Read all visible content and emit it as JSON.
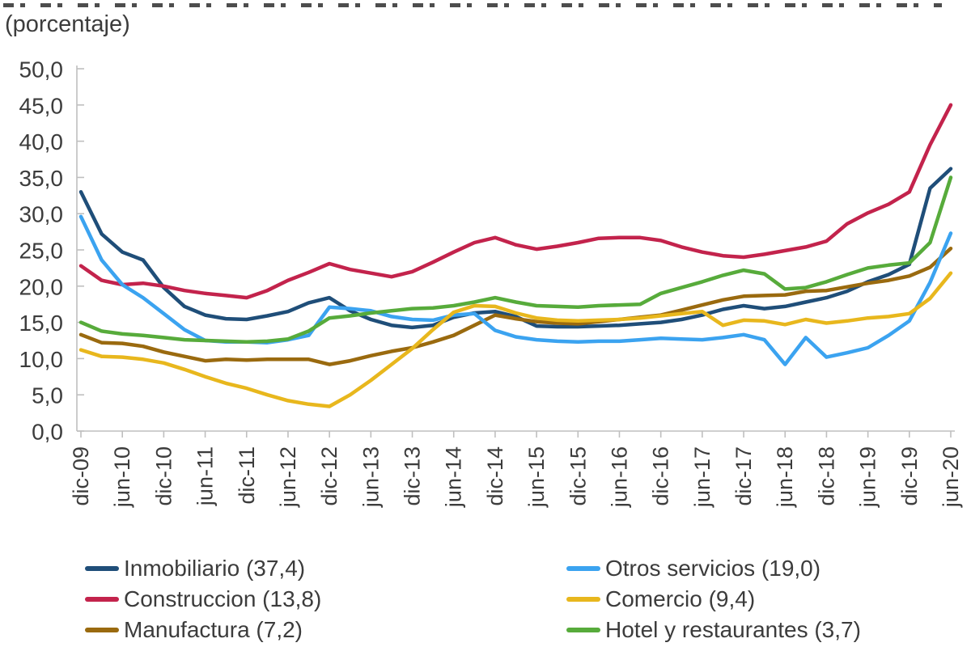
{
  "page": {
    "subtitle": "(porcentaje)",
    "text_color": "#3c3c3c",
    "axis_color": "#bfbfbf"
  },
  "chart_data": {
    "type": "line",
    "title": "(porcentaje)",
    "xlabel": "",
    "ylabel": "",
    "ylim": [
      0,
      50
    ],
    "grid": false,
    "legend_position": "bottom",
    "y_tick_labels": [
      "0,0",
      "5,0",
      "10,0",
      "15,0",
      "20,0",
      "25,0",
      "30,0",
      "35,0",
      "40,0",
      "45,0",
      "50,0"
    ],
    "y_tick_values": [
      0,
      5,
      10,
      15,
      20,
      25,
      30,
      35,
      40,
      45,
      50
    ],
    "x": [
      "dic-09",
      "mar-10",
      "jun-10",
      "sep-10",
      "dic-10",
      "mar-11",
      "jun-11",
      "sep-11",
      "dic-11",
      "mar-12",
      "jun-12",
      "sep-12",
      "dic-12",
      "mar-13",
      "jun-13",
      "sep-13",
      "dic-13",
      "mar-14",
      "jun-14",
      "sep-14",
      "dic-14",
      "mar-15",
      "jun-15",
      "sep-15",
      "dic-15",
      "mar-16",
      "jun-16",
      "sep-16",
      "dic-16",
      "mar-17",
      "jun-17",
      "sep-17",
      "dic-17",
      "mar-18",
      "jun-18",
      "sep-18",
      "dic-18",
      "mar-19",
      "jun-19",
      "sep-19",
      "dic-19",
      "mar-20",
      "jun-20"
    ],
    "x_tick_labels": [
      "dic-09",
      "jun-10",
      "dic-10",
      "jun-11",
      "dic-11",
      "jun-12",
      "dic-12",
      "jun-13",
      "dic-13",
      "jun-14",
      "dic-14",
      "jun-15",
      "dic-15",
      "jun-16",
      "dic-16",
      "jun-17",
      "dic-17",
      "jun-18",
      "dic-18",
      "jun-19",
      "dic-19",
      "jun-20"
    ],
    "series": [
      {
        "name": "Inmobiliario (37,4)",
        "color": "#1f4e79",
        "values": [
          33.0,
          27.2,
          24.7,
          23.6,
          19.8,
          17.2,
          16.0,
          15.5,
          15.4,
          15.9,
          16.5,
          17.7,
          18.4,
          16.6,
          15.4,
          14.6,
          14.3,
          14.6,
          15.7,
          16.3,
          16.5,
          15.8,
          14.5,
          14.4,
          14.4,
          14.5,
          14.6,
          14.8,
          15.0,
          15.4,
          16.0,
          16.8,
          17.3,
          16.9,
          17.2,
          17.8,
          18.4,
          19.3,
          20.6,
          21.6,
          23.0,
          33.5,
          36.2
        ]
      },
      {
        "name": "Construccion (13,8)",
        "color": "#c3234c",
        "values": [
          22.8,
          20.8,
          20.2,
          20.4,
          20.0,
          19.4,
          19.0,
          18.7,
          18.4,
          19.4,
          20.8,
          21.9,
          23.1,
          22.3,
          21.8,
          21.3,
          22.0,
          23.3,
          24.7,
          26.0,
          26.7,
          25.7,
          25.1,
          25.5,
          26.0,
          26.6,
          26.7,
          26.7,
          26.3,
          25.4,
          24.7,
          24.2,
          24.0,
          24.4,
          24.9,
          25.4,
          26.2,
          28.6,
          30.1,
          31.3,
          33.0,
          39.5,
          45.0
        ]
      },
      {
        "name": "Manufactura (7,2)",
        "color": "#9a6a0f",
        "values": [
          13.3,
          12.2,
          12.1,
          11.7,
          10.9,
          10.3,
          9.7,
          9.9,
          9.8,
          9.9,
          9.9,
          9.9,
          9.2,
          9.7,
          10.4,
          11.0,
          11.5,
          12.3,
          13.2,
          14.6,
          16.0,
          15.5,
          15.1,
          14.9,
          14.8,
          15.1,
          15.4,
          15.7,
          16.0,
          16.7,
          17.4,
          18.1,
          18.6,
          18.7,
          18.8,
          19.3,
          19.4,
          19.9,
          20.4,
          20.8,
          21.4,
          22.6,
          25.2
        ]
      },
      {
        "name": "Otros servicios (19,0)",
        "color": "#3ba3f0",
        "values": [
          29.6,
          23.6,
          20.2,
          18.4,
          16.2,
          14.0,
          12.5,
          12.3,
          12.3,
          12.2,
          12.6,
          13.2,
          17.1,
          16.9,
          16.6,
          15.8,
          15.4,
          15.3,
          16.0,
          16.2,
          13.9,
          13.0,
          12.6,
          12.4,
          12.3,
          12.4,
          12.4,
          12.6,
          12.8,
          12.7,
          12.6,
          12.9,
          13.3,
          12.6,
          9.2,
          12.9,
          10.2,
          10.8,
          11.5,
          13.2,
          15.2,
          20.5,
          27.3
        ]
      },
      {
        "name": "Comercio (9,4)",
        "color": "#e8b71d",
        "values": [
          11.2,
          10.3,
          10.2,
          9.9,
          9.4,
          8.5,
          7.5,
          6.6,
          5.9,
          5.0,
          4.2,
          3.7,
          3.4,
          5.0,
          7.0,
          9.2,
          11.4,
          14.0,
          16.4,
          17.3,
          17.2,
          16.3,
          15.6,
          15.3,
          15.2,
          15.3,
          15.4,
          15.6,
          15.9,
          16.2,
          16.5,
          14.6,
          15.3,
          15.2,
          14.7,
          15.4,
          14.9,
          15.2,
          15.6,
          15.8,
          16.2,
          18.3,
          21.8
        ]
      },
      {
        "name": "Hotel y restaurantes (3,7)",
        "color": "#57ab3b",
        "values": [
          15.0,
          13.8,
          13.4,
          13.2,
          12.9,
          12.6,
          12.5,
          12.4,
          12.3,
          12.4,
          12.7,
          13.8,
          15.6,
          15.9,
          16.3,
          16.6,
          16.9,
          17.0,
          17.3,
          17.8,
          18.4,
          17.8,
          17.3,
          17.2,
          17.1,
          17.3,
          17.4,
          17.5,
          19.0,
          19.8,
          20.6,
          21.5,
          22.2,
          21.7,
          19.6,
          19.8,
          20.6,
          21.6,
          22.5,
          22.9,
          23.2,
          26.0,
          35.0
        ]
      }
    ],
    "legend_columns": [
      [
        0,
        1,
        2
      ],
      [
        3,
        4,
        5
      ]
    ]
  }
}
